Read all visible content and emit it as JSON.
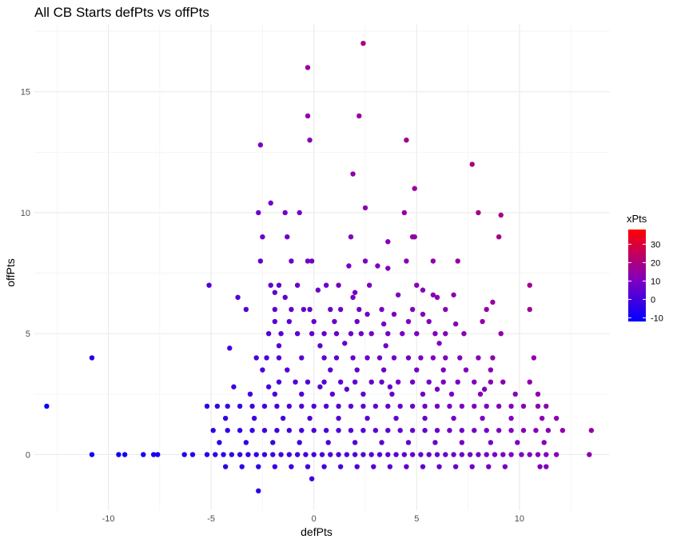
{
  "chart_data": {
    "type": "scatter",
    "title": "All CB Starts defPts vs offPts",
    "xlabel": "defPts",
    "ylabel": "offPts",
    "xlim": [
      -13.6,
      14.4
    ],
    "ylim": [
      -2.3,
      17.8
    ],
    "x_ticks": [
      -10,
      -5,
      0,
      5,
      10
    ],
    "x_tick_labels": [
      "-10",
      "-5",
      "0",
      "5",
      "10"
    ],
    "y_ticks": [
      0,
      5,
      10,
      15
    ],
    "y_tick_labels": [
      "0",
      "5",
      "10",
      "15"
    ],
    "grid": true,
    "legend": {
      "title": "xPts",
      "placement": "right",
      "type": "colorbar",
      "range": [
        -12,
        38
      ],
      "ticks": [
        -10,
        0,
        10,
        20,
        30
      ],
      "tick_labels": [
        "-10",
        "0",
        "10",
        "20",
        "30"
      ],
      "color_low": "#0000ff",
      "color_mid": "#8000c0",
      "color_high": "#ff0000"
    },
    "color_variable": "xPts",
    "points": [
      [
        2.4,
        17
      ],
      [
        -0.3,
        16
      ],
      [
        -0.3,
        14
      ],
      [
        2.2,
        14
      ],
      [
        -0.2,
        13
      ],
      [
        4.5,
        13
      ],
      [
        -2.6,
        12.8
      ],
      [
        7.7,
        12
      ],
      [
        1.9,
        11.6
      ],
      [
        4.9,
        11
      ],
      [
        -2.1,
        10.4
      ],
      [
        2.5,
        10.2
      ],
      [
        -2.7,
        10
      ],
      [
        -1.4,
        10
      ],
      [
        -0.7,
        10
      ],
      [
        4.4,
        10
      ],
      [
        8.0,
        10
      ],
      [
        9.1,
        9.9
      ],
      [
        -2.5,
        9
      ],
      [
        -1.3,
        9
      ],
      [
        1.8,
        9
      ],
      [
        4.8,
        9
      ],
      [
        4.9,
        9
      ],
      [
        9.0,
        9
      ],
      [
        3.6,
        8.8
      ],
      [
        -2.6,
        8
      ],
      [
        -1.1,
        8
      ],
      [
        -0.3,
        8
      ],
      [
        -0.1,
        8
      ],
      [
        2.5,
        8
      ],
      [
        4.5,
        8
      ],
      [
        5.8,
        8
      ],
      [
        7.0,
        8
      ],
      [
        1.7,
        7.8
      ],
      [
        3.1,
        7.8
      ],
      [
        3.6,
        7.7
      ],
      [
        -5.1,
        7
      ],
      [
        -2.1,
        7
      ],
      [
        -1.7,
        7
      ],
      [
        -0.8,
        7
      ],
      [
        0.6,
        7
      ],
      [
        1.2,
        7
      ],
      [
        2.7,
        7
      ],
      [
        5.0,
        7
      ],
      [
        10.5,
        7
      ],
      [
        5.3,
        6.8
      ],
      [
        0.2,
        6.8
      ],
      [
        2.0,
        6.7
      ],
      [
        -3.7,
        6.5
      ],
      [
        -1.9,
        6.7
      ],
      [
        -1.4,
        6.5
      ],
      [
        1.9,
        6.5
      ],
      [
        4.1,
        6.6
      ],
      [
        5.8,
        6.6
      ],
      [
        6.0,
        6.5
      ],
      [
        6.8,
        6.6
      ],
      [
        8.7,
        6.3
      ],
      [
        -3.3,
        6
      ],
      [
        -1.9,
        6
      ],
      [
        -1.1,
        6
      ],
      [
        -0.5,
        6
      ],
      [
        -0.2,
        6
      ],
      [
        0.8,
        6
      ],
      [
        1.3,
        6
      ],
      [
        2.2,
        6
      ],
      [
        3.3,
        6
      ],
      [
        4.8,
        6
      ],
      [
        6.4,
        6
      ],
      [
        8.4,
        6
      ],
      [
        10.5,
        6
      ],
      [
        2.6,
        5.8
      ],
      [
        3.9,
        5.8
      ],
      [
        5.3,
        5.8
      ],
      [
        -1.9,
        5.5
      ],
      [
        -1.2,
        5.5
      ],
      [
        0.0,
        5.5
      ],
      [
        1.0,
        5.5
      ],
      [
        2.1,
        5.5
      ],
      [
        3.4,
        5.4
      ],
      [
        4.6,
        5.5
      ],
      [
        5.6,
        5.5
      ],
      [
        6.9,
        5.4
      ],
      [
        8.2,
        5.5
      ],
      [
        -2.2,
        5
      ],
      [
        -1.6,
        5
      ],
      [
        -0.8,
        5
      ],
      [
        -0.1,
        5
      ],
      [
        0.5,
        5
      ],
      [
        1.1,
        5
      ],
      [
        1.8,
        5
      ],
      [
        2.3,
        5
      ],
      [
        2.8,
        5
      ],
      [
        3.6,
        5
      ],
      [
        4.3,
        5
      ],
      [
        5.0,
        5
      ],
      [
        5.9,
        5
      ],
      [
        6.4,
        5
      ],
      [
        7.3,
        5
      ],
      [
        9.1,
        5
      ],
      [
        -4.1,
        4.4
      ],
      [
        -1.7,
        4.5
      ],
      [
        0.3,
        4.5
      ],
      [
        1.5,
        4.6
      ],
      [
        3.5,
        4.5
      ],
      [
        6.1,
        4.6
      ],
      [
        -2.8,
        4
      ],
      [
        -2.3,
        4
      ],
      [
        -1.7,
        4
      ],
      [
        -0.6,
        4
      ],
      [
        0.5,
        4
      ],
      [
        1.1,
        4
      ],
      [
        1.9,
        4
      ],
      [
        2.6,
        4
      ],
      [
        3.2,
        4
      ],
      [
        3.9,
        4
      ],
      [
        4.6,
        4
      ],
      [
        5.2,
        4
      ],
      [
        5.8,
        4
      ],
      [
        6.4,
        4
      ],
      [
        7.1,
        4
      ],
      [
        8.0,
        4
      ],
      [
        8.7,
        4
      ],
      [
        10.7,
        4
      ],
      [
        -10.8,
        4
      ],
      [
        -3.9,
        2.8
      ],
      [
        -2.5,
        3.5
      ],
      [
        -1.3,
        3.5
      ],
      [
        0.8,
        3.5
      ],
      [
        2.1,
        3.5
      ],
      [
        3.4,
        3.5
      ],
      [
        5.0,
        3.5
      ],
      [
        6.3,
        3.5
      ],
      [
        7.4,
        3.5
      ],
      [
        8.6,
        3.5
      ],
      [
        -1.7,
        3
      ],
      [
        -0.9,
        3
      ],
      [
        -0.3,
        3
      ],
      [
        0.5,
        3
      ],
      [
        1.3,
        3
      ],
      [
        2.0,
        3
      ],
      [
        2.8,
        3
      ],
      [
        3.3,
        3
      ],
      [
        4.1,
        3
      ],
      [
        4.8,
        3
      ],
      [
        5.6,
        3
      ],
      [
        6.3,
        3
      ],
      [
        7.0,
        3
      ],
      [
        7.8,
        3
      ],
      [
        8.6,
        3
      ],
      [
        9.2,
        3
      ],
      [
        10.5,
        3
      ],
      [
        -2.2,
        2.8
      ],
      [
        0.3,
        2.8
      ],
      [
        1.6,
        2.7
      ],
      [
        3.7,
        2.8
      ],
      [
        6.0,
        2.7
      ],
      [
        8.3,
        2.7
      ],
      [
        -3.1,
        2.5
      ],
      [
        -1.9,
        2.5
      ],
      [
        -0.6,
        2.5
      ],
      [
        0.9,
        2.5
      ],
      [
        2.4,
        2.5
      ],
      [
        3.8,
        2.5
      ],
      [
        5.3,
        2.5
      ],
      [
        6.7,
        2.5
      ],
      [
        8.1,
        2.5
      ],
      [
        9.8,
        2.5
      ],
      [
        10.9,
        2.5
      ],
      [
        -13,
        2
      ],
      [
        -5.2,
        2
      ],
      [
        -4.7,
        2
      ],
      [
        -4.2,
        2
      ],
      [
        -3.6,
        2
      ],
      [
        -3.0,
        2
      ],
      [
        -2.4,
        2
      ],
      [
        -1.8,
        2
      ],
      [
        -1.2,
        2
      ],
      [
        -0.6,
        2
      ],
      [
        0.0,
        2
      ],
      [
        0.6,
        2
      ],
      [
        1.2,
        2
      ],
      [
        1.8,
        2
      ],
      [
        2.4,
        2
      ],
      [
        3.0,
        2
      ],
      [
        3.6,
        2
      ],
      [
        4.2,
        2
      ],
      [
        4.8,
        2
      ],
      [
        5.4,
        2
      ],
      [
        6.0,
        2
      ],
      [
        6.6,
        2
      ],
      [
        7.2,
        2
      ],
      [
        7.8,
        2
      ],
      [
        8.4,
        2
      ],
      [
        9.0,
        2
      ],
      [
        9.6,
        2
      ],
      [
        10.2,
        2
      ],
      [
        10.9,
        2
      ],
      [
        11.3,
        2
      ],
      [
        -4.3,
        1.5
      ],
      [
        -2.9,
        1.5
      ],
      [
        -1.5,
        1.5
      ],
      [
        -0.2,
        1.5
      ],
      [
        1.2,
        1.5
      ],
      [
        2.6,
        1.5
      ],
      [
        4.0,
        1.5
      ],
      [
        5.4,
        1.5
      ],
      [
        6.8,
        1.5
      ],
      [
        8.2,
        1.5
      ],
      [
        9.6,
        1.5
      ],
      [
        11.1,
        1.5
      ],
      [
        11.8,
        1.5
      ],
      [
        -4.9,
        1
      ],
      [
        -4.2,
        1
      ],
      [
        -3.6,
        1
      ],
      [
        -3.0,
        1
      ],
      [
        -2.4,
        1
      ],
      [
        -1.8,
        1
      ],
      [
        -1.2,
        1
      ],
      [
        -0.6,
        1
      ],
      [
        0.0,
        1
      ],
      [
        0.6,
        1
      ],
      [
        1.2,
        1
      ],
      [
        1.8,
        1
      ],
      [
        2.4,
        1
      ],
      [
        3.0,
        1
      ],
      [
        3.6,
        1
      ],
      [
        4.2,
        1
      ],
      [
        4.8,
        1
      ],
      [
        5.4,
        1
      ],
      [
        6.0,
        1
      ],
      [
        6.6,
        1
      ],
      [
        7.2,
        1
      ],
      [
        7.8,
        1
      ],
      [
        8.4,
        1
      ],
      [
        9.0,
        1
      ],
      [
        9.6,
        1
      ],
      [
        10.2,
        1
      ],
      [
        10.8,
        1
      ],
      [
        11.4,
        1
      ],
      [
        12.1,
        1
      ],
      [
        13.5,
        1
      ],
      [
        -4.6,
        0.5
      ],
      [
        -3.3,
        0.5
      ],
      [
        -2.0,
        0.5
      ],
      [
        -0.7,
        0.5
      ],
      [
        0.7,
        0.5
      ],
      [
        2.0,
        0.5
      ],
      [
        3.3,
        0.5
      ],
      [
        4.6,
        0.5
      ],
      [
        5.9,
        0.5
      ],
      [
        7.2,
        0.5
      ],
      [
        8.6,
        0.5
      ],
      [
        9.9,
        0.5
      ],
      [
        11.2,
        0.5
      ],
      [
        -10.8,
        0
      ],
      [
        -9.5,
        0
      ],
      [
        -9.2,
        0
      ],
      [
        -8.3,
        0
      ],
      [
        -7.8,
        0
      ],
      [
        -7.6,
        0
      ],
      [
        -6.3,
        0
      ],
      [
        -5.9,
        0
      ],
      [
        -5.2,
        0
      ],
      [
        -4.8,
        0
      ],
      [
        -4.4,
        0
      ],
      [
        -4.0,
        0
      ],
      [
        -3.6,
        0
      ],
      [
        -3.2,
        0
      ],
      [
        -2.8,
        0
      ],
      [
        -2.4,
        0
      ],
      [
        -2.0,
        0
      ],
      [
        -1.6,
        0
      ],
      [
        -1.2,
        0
      ],
      [
        -0.8,
        0
      ],
      [
        -0.4,
        0
      ],
      [
        0.0,
        0
      ],
      [
        0.4,
        0
      ],
      [
        0.8,
        0
      ],
      [
        1.2,
        0
      ],
      [
        1.6,
        0
      ],
      [
        2.0,
        0
      ],
      [
        2.4,
        0
      ],
      [
        2.8,
        0
      ],
      [
        3.2,
        0
      ],
      [
        3.6,
        0
      ],
      [
        4.0,
        0
      ],
      [
        4.4,
        0
      ],
      [
        4.8,
        0
      ],
      [
        5.2,
        0
      ],
      [
        5.6,
        0
      ],
      [
        6.0,
        0
      ],
      [
        6.4,
        0
      ],
      [
        6.8,
        0
      ],
      [
        7.2,
        0
      ],
      [
        7.6,
        0
      ],
      [
        8.0,
        0
      ],
      [
        8.4,
        0
      ],
      [
        8.8,
        0
      ],
      [
        9.2,
        0
      ],
      [
        9.6,
        0
      ],
      [
        10.1,
        0
      ],
      [
        10.5,
        0
      ],
      [
        10.9,
        0
      ],
      [
        11.3,
        0
      ],
      [
        11.8,
        0
      ],
      [
        13.4,
        0
      ],
      [
        -4.3,
        -0.5
      ],
      [
        -3.5,
        -0.5
      ],
      [
        -2.7,
        -0.5
      ],
      [
        -1.9,
        -0.5
      ],
      [
        -1.1,
        -0.5
      ],
      [
        -0.3,
        -0.5
      ],
      [
        0.5,
        -0.5
      ],
      [
        1.3,
        -0.5
      ],
      [
        2.1,
        -0.5
      ],
      [
        2.9,
        -0.5
      ],
      [
        3.7,
        -0.5
      ],
      [
        4.5,
        -0.5
      ],
      [
        5.3,
        -0.5
      ],
      [
        6.1,
        -0.5
      ],
      [
        6.9,
        -0.5
      ],
      [
        7.7,
        -0.5
      ],
      [
        8.5,
        -0.5
      ],
      [
        9.3,
        -0.5
      ],
      [
        11.0,
        -0.5
      ],
      [
        11.3,
        -0.5
      ],
      [
        -0.1,
        -1
      ],
      [
        -2.7,
        -1.5
      ]
    ]
  }
}
